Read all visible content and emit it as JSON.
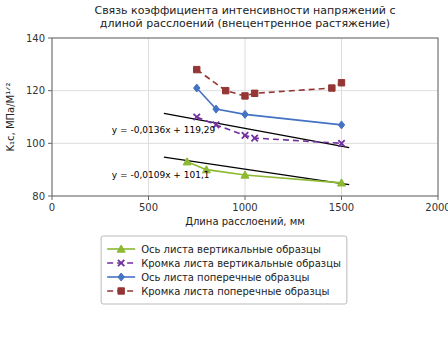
{
  "chart_data": {
    "type": "line",
    "title": "Связь коэффициента интенсивности напряжений с\nдлиной расслоений (внецентренное растяжение)",
    "xlabel": "Длина расслоений, мм",
    "ylabel": "K₁c, МПа/М¹ᐟ²",
    "xlim": [
      0,
      2000
    ],
    "ylim": [
      80,
      140
    ],
    "xticks": [
      0,
      500,
      1000,
      1500,
      2000
    ],
    "yticks": [
      80,
      100,
      120,
      140
    ],
    "grid": true,
    "legend": "bottom",
    "series": [
      {
        "name": "Ось листа вертикальные образцы",
        "color": "#8db832",
        "marker": "triangle",
        "line_style": "solid",
        "x": [
          700,
          800,
          1000,
          1500
        ],
        "values": [
          93,
          90,
          88,
          85
        ]
      },
      {
        "name": "Кромка листа вертикальные образцы",
        "color": "#7030a0",
        "marker": "x",
        "line_style": "dashed",
        "x": [
          750,
          850,
          1000,
          1050,
          1500
        ],
        "values": [
          110,
          107,
          103,
          102,
          100
        ]
      },
      {
        "name": "Ось листа поперечные образцы",
        "color": "#4472c4",
        "marker": "diamond",
        "line_style": "solid",
        "x": [
          750,
          850,
          1000,
          1500
        ],
        "values": [
          121,
          113,
          111,
          107
        ]
      },
      {
        "name": "Кромка листа поперечные образцы",
        "color": "#943634",
        "marker": "square",
        "line_style": "dashed",
        "x": [
          750,
          900,
          1000,
          1050,
          1450,
          1500
        ],
        "values": [
          128,
          120,
          118,
          119,
          121,
          123
        ]
      },
      {
        "color": "#000000",
        "marker": "none",
        "line_style": "solid",
        "x": [
          580,
          1540
        ],
        "values": [
          111.402,
          98.346
        ]
      },
      {
        "color": "#000000",
        "marker": "none",
        "line_style": "solid",
        "x": [
          580,
          1540
        ],
        "values": [
          94.778,
          84.314
        ]
      }
    ],
    "annotations": [
      "y = -0,0136x + 119,29",
      "y = -0,0109x + 101,1"
    ]
  }
}
